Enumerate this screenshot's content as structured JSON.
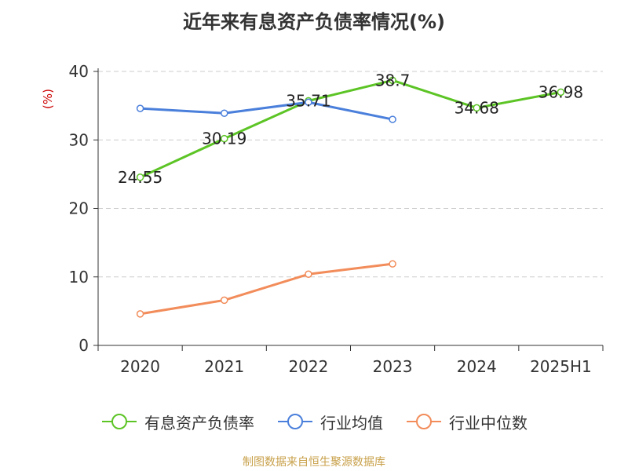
{
  "chart_data": {
    "type": "line",
    "title": "近年来有息资产负债率情况(%)",
    "ylabel": "(%)",
    "xlabel": "",
    "categories": [
      "2020",
      "2021",
      "2022",
      "2023",
      "2024",
      "2025H1"
    ],
    "ylim": [
      0,
      40
    ],
    "yticks": [
      "0",
      "10",
      "20",
      "30",
      "40"
    ],
    "grid": "horizontal-dashed",
    "legend_position": "bottom",
    "series": [
      {
        "name": "有息资产负债率",
        "color": "#5cc425",
        "values": [
          24.55,
          30.19,
          35.71,
          38.7,
          34.68,
          36.98
        ],
        "labels": [
          "24.55",
          "30.19",
          "35.71",
          "38.7",
          "34.68",
          "36.98"
        ]
      },
      {
        "name": "行业均值",
        "color": "#4a7fdb",
        "values": [
          34.6,
          33.9,
          35.5,
          33.0,
          null,
          null
        ]
      },
      {
        "name": "行业中位数",
        "color": "#f28c5a",
        "values": [
          4.6,
          6.6,
          10.4,
          11.9,
          null,
          null
        ]
      }
    ]
  },
  "source_text": "制图数据来自恒生聚源数据库"
}
